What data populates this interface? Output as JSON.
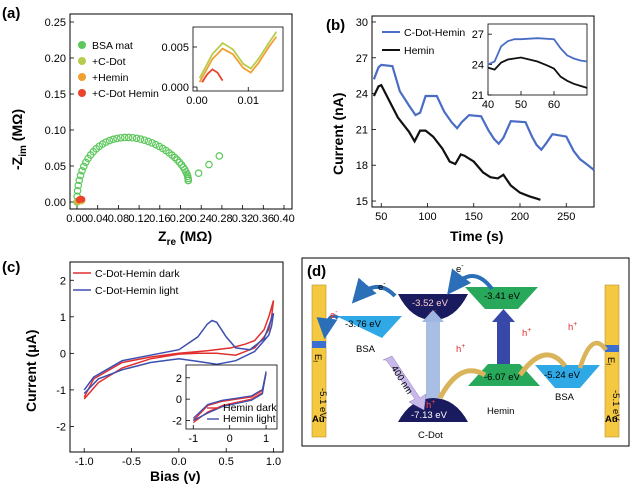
{
  "panels": {
    "a": {
      "label": "(a)",
      "xlabel": "Z",
      "xlabel_sub": "re",
      "xunit": " (MΩ)",
      "ylabel_prefix": "-Z",
      "ylabel_sub": "im",
      "yunit": " (MΩ)",
      "xticks": [
        "0.00",
        "0.04",
        "0.08",
        "0.12",
        "0.16",
        "0.20",
        "0.24",
        "0.28",
        "0.32",
        "0.36",
        "0.40"
      ],
      "yticks": [
        "0.00",
        "0.05",
        "0.10",
        "0.15",
        "0.20",
        "0.25"
      ],
      "legend": [
        "BSA mat",
        "+C-Dot",
        "+Hemin",
        "+C-Dot Hemin"
      ],
      "inset_xticks": [
        "0.00",
        "0.01"
      ],
      "inset_yticks": [
        "0.000",
        "0.005"
      ],
      "colors": {
        "bsa": "#5cc85c",
        "cdot": "#b7cc4e",
        "hemin": "#f0a030",
        "cdh": "#e8452c"
      }
    },
    "b": {
      "label": "(b)",
      "xlabel": "Time (s)",
      "ylabel": "Current (nA)",
      "xticks": [
        "50",
        "100",
        "150",
        "200",
        "250"
      ],
      "yticks": [
        "15",
        "18",
        "21",
        "24",
        "27",
        "30"
      ],
      "legend": [
        "C-Dot-Hemin",
        "Hemin"
      ],
      "inset_xticks": [
        "40",
        "50",
        "60"
      ],
      "inset_yticks": [
        "21",
        "24",
        "27"
      ],
      "colors": {
        "cdh": "#4a6dc4",
        "hemin": "#111111"
      }
    },
    "c": {
      "label": "(c)",
      "xlabel": "Bias (v)",
      "ylabel": "Current (μA)",
      "xticks": [
        "-1.0",
        "-0.5",
        "0.0",
        "0.5",
        "1.0"
      ],
      "yticks": [
        "2",
        "1",
        "0",
        "-1",
        "-2"
      ],
      "legend": [
        "C-Dot-Hemin dark",
        "C-Dot-Hemin light"
      ],
      "inset_legend": [
        "Hemin dark",
        "Hemin light"
      ],
      "inset_xticks": [
        "-1",
        "0",
        "1"
      ],
      "inset_yticks": [
        "2",
        "0",
        "-2"
      ],
      "colors": {
        "dark": "#e03030",
        "light": "#3b4fb0"
      }
    },
    "d": {
      "label": "(d)",
      "levels": {
        "bsa_left": "-3.76 eV",
        "cdot_lumo": "-3.52 eV",
        "cdot_homo": "-7.13 eV",
        "hemin_lumo": "-3.41 eV",
        "hemin_homo": "-6.07 eV",
        "bsa_right": "-5.24 eV"
      },
      "names": {
        "bsa_left": "BSA",
        "bsa_right": "BSA",
        "cdot": "C-Dot",
        "hemin": "Hemin",
        "au": "Au",
        "ef": "E",
        "ef_sub": "f",
        "au_wf": "-5.1 eV",
        "light": "400 nm"
      },
      "carriers": {
        "e": "e",
        "h": "h",
        "minus": "-",
        "plus": "+"
      },
      "colors": {
        "au": "#f5c842",
        "bsa": "#2fa8e6",
        "dot": "#1a1a5e",
        "hemin": "#27a85a",
        "arrow_blue": "#2b6fb8",
        "arrow_tan": "#d9b45a",
        "arrow_purple": "#3848a8"
      }
    }
  },
  "chart_data": [
    {
      "type": "scatter",
      "panel": "a",
      "xlabel": "Zre (MΩ)",
      "ylabel": "-Zim (MΩ)",
      "xlim": [
        0,
        0.4
      ],
      "ylim": [
        0,
        0.25
      ],
      "series": [
        {
          "name": "BSA mat",
          "semicircle": {
            "x_start": 0.0,
            "x_end": 0.215,
            "peak_y": 0.102
          },
          "tail": [
            [
              0.215,
              0.03
            ],
            [
              0.235,
              0.04
            ],
            [
              0.255,
              0.052
            ],
            [
              0.275,
              0.064
            ]
          ]
        },
        {
          "name": "+C-Dot",
          "x": [
            0.0,
            0.002,
            0.004,
            0.006,
            0.008,
            0.01
          ],
          "y": [
            0.0,
            0.002,
            0.003,
            0.002,
            0.001,
            0.002
          ]
        },
        {
          "name": "+Hemin",
          "x": [
            0.0,
            0.002,
            0.004,
            0.006,
            0.008
          ],
          "y": [
            0.0,
            0.002,
            0.003,
            0.002,
            0.001
          ]
        },
        {
          "name": "+C-Dot Hemin",
          "x": [
            0.0,
            0.002,
            0.004,
            0.006
          ],
          "y": [
            0.0,
            0.001,
            0.0015,
            0.001
          ]
        }
      ],
      "inset": {
        "xlim": [
          0,
          0.016
        ],
        "ylim": [
          0,
          0.007
        ]
      }
    },
    {
      "type": "line",
      "panel": "b",
      "xlabel": "Time (s)",
      "ylabel": "Current (nA)",
      "xlim": [
        40,
        280
      ],
      "ylim": [
        14.5,
        30.5
      ],
      "series": [
        {
          "name": "C-Dot-Hemin",
          "x": [
            42,
            47,
            50,
            62,
            70,
            80,
            87,
            92,
            98,
            110,
            118,
            126,
            132,
            137,
            145,
            158,
            166,
            172,
            177,
            182,
            190,
            206,
            213,
            218,
            223,
            228,
            235,
            250,
            258,
            265,
            270,
            280
          ],
          "y": [
            25.2,
            26.2,
            26.4,
            26.3,
            24.2,
            23.0,
            22.2,
            22.4,
            23.8,
            23.8,
            22.5,
            21.6,
            21.1,
            21.6,
            22.2,
            22.1,
            20.9,
            20.2,
            19.8,
            20.3,
            21.7,
            21.6,
            20.4,
            19.7,
            19.3,
            19.8,
            20.6,
            20.4,
            19.2,
            18.5,
            18.2,
            17.6
          ]
        },
        {
          "name": "Hemin",
          "x": [
            42,
            47,
            50,
            60,
            68,
            80,
            86,
            92,
            98,
            106,
            116,
            124,
            130,
            136,
            140,
            150,
            160,
            168,
            176,
            182,
            190,
            200,
            210,
            218,
            222
          ],
          "y": [
            23.8,
            24.6,
            24.7,
            23.2,
            22.0,
            20.8,
            20.0,
            20.9,
            20.9,
            20.4,
            19.4,
            18.3,
            18.1,
            18.9,
            18.8,
            18.3,
            17.4,
            17.0,
            16.9,
            17.2,
            16.3,
            15.7,
            15.4,
            15.2,
            15.1
          ]
        }
      ],
      "inset": {
        "xlim": [
          40,
          70
        ],
        "ylim": [
          21,
          28
        ],
        "series": [
          {
            "name": "C-Dot-Hemin",
            "x": [
              40,
              42,
              44,
              46,
              48,
              50,
              55,
              60,
              62,
              64,
              66,
              68,
              70
            ],
            "y": [
              24.0,
              24.3,
              25.8,
              26.3,
              26.5,
              26.5,
              26.6,
              26.5,
              25.6,
              24.9,
              24.6,
              24.4,
              24.3
            ]
          },
          {
            "name": "Hemin",
            "x": [
              40,
              42,
              44,
              46,
              48,
              50,
              55,
              58,
              60,
              62,
              64,
              66,
              68,
              70
            ],
            "y": [
              23.7,
              23.5,
              24.2,
              24.5,
              24.6,
              24.7,
              24.3,
              23.9,
              23.6,
              22.8,
              22.4,
              22.1,
              21.9,
              21.7
            ]
          }
        ]
      }
    },
    {
      "type": "line",
      "panel": "c",
      "xlabel": "Bias (v)",
      "ylabel": "Current (μA)",
      "xlim": [
        -1.15,
        1.1
      ],
      "ylim": [
        -2.7,
        2.5
      ],
      "series": [
        {
          "name": "C-Dot-Hemin dark",
          "x": [
            -1.0,
            -0.9,
            -0.6,
            -0.3,
            0.0,
            0.3,
            0.55,
            0.7,
            0.8,
            0.9,
            0.95,
            1.0,
            0.98,
            0.95,
            0.9,
            0.8,
            0.6,
            0.4,
            0.2,
            0.0,
            -0.3,
            -0.6,
            -0.85,
            -1.0
          ],
          "y": [
            -1.2,
            -0.7,
            -0.25,
            -0.1,
            0.0,
            0.07,
            0.15,
            0.25,
            0.35,
            0.65,
            1.0,
            1.45,
            1.0,
            0.65,
            0.45,
            0.15,
            -0.05,
            0.0,
            0.0,
            -0.02,
            -0.15,
            -0.4,
            -0.8,
            -1.25
          ]
        },
        {
          "name": "C-Dot-Hemin light",
          "x": [
            -1.0,
            -0.9,
            -0.6,
            -0.3,
            0.0,
            0.2,
            0.3,
            0.35,
            0.4,
            0.5,
            0.6,
            0.75,
            0.9,
            1.0,
            0.98,
            0.95,
            0.9,
            0.8,
            0.6,
            0.4,
            0.2,
            0.0,
            -0.3,
            -0.6,
            -0.85,
            -1.0
          ],
          "y": [
            -1.0,
            -0.65,
            -0.2,
            -0.05,
            0.1,
            0.45,
            0.8,
            0.9,
            0.85,
            0.45,
            0.15,
            0.1,
            0.4,
            1.1,
            0.75,
            0.5,
            0.35,
            0.05,
            -0.2,
            -0.3,
            -0.22,
            -0.15,
            -0.25,
            -0.45,
            -0.7,
            -1.1
          ]
        }
      ],
      "inset": {
        "xlim": [
          -1.2,
          1.3
        ],
        "ylim": [
          -2.8,
          3.2
        ],
        "series": [
          {
            "name": "Hemin dark",
            "x": [
              -1.0,
              -0.6,
              -0.2,
              0.2,
              0.6,
              0.9,
              1.0,
              0.9,
              0.6,
              0.2,
              -0.2,
              -0.6,
              -1.0
            ],
            "y": [
              -2.0,
              -0.6,
              -0.2,
              0.0,
              0.2,
              0.8,
              2.4,
              0.6,
              0.0,
              -0.3,
              -0.6,
              -1.2,
              -2.2
            ]
          },
          {
            "name": "Hemin light",
            "x": [
              -1.0,
              -0.6,
              -0.2,
              0.2,
              0.6,
              0.9,
              1.0,
              0.9,
              0.6,
              0.2,
              -0.2,
              -0.6,
              -1.0
            ],
            "y": [
              -1.8,
              -0.5,
              -0.1,
              0.1,
              0.3,
              0.9,
              2.6,
              0.5,
              -0.1,
              -0.4,
              -0.7,
              -1.3,
              -2.0
            ]
          }
        ]
      }
    }
  ]
}
